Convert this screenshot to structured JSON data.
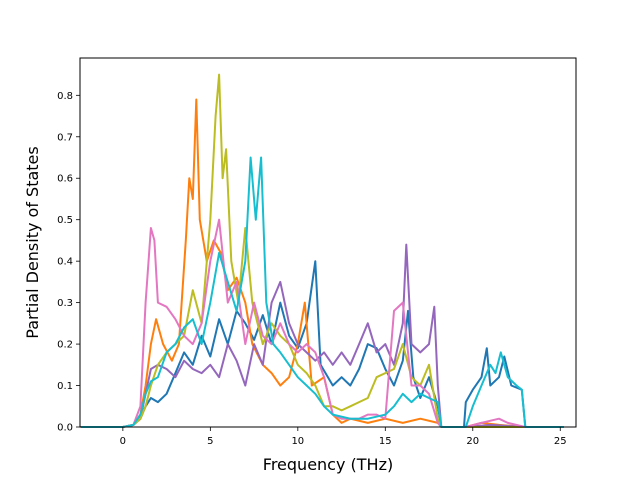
{
  "chart_data": {
    "type": "line",
    "xlabel": "Frequency (THz)",
    "ylabel": "Partial Density of States",
    "xlim": [
      -2.45,
      25.9
    ],
    "ylim": [
      0.0,
      0.89
    ],
    "xticks": [
      0,
      5,
      10,
      15,
      20,
      25
    ],
    "xtick_labels": [
      "0",
      "5",
      "10",
      "15",
      "20",
      "25"
    ],
    "yticks": [
      0.0,
      0.1,
      0.2,
      0.3,
      0.4,
      0.5,
      0.6,
      0.7,
      0.8
    ],
    "ytick_labels": [
      "0.0",
      "0.1",
      "0.2",
      "0.3",
      "0.4",
      "0.5",
      "0.6",
      "0.7",
      "0.8"
    ],
    "grid": false,
    "legend": "none",
    "series": [
      {
        "color": "#1f77b4",
        "points": [
          [
            -2.4,
            0
          ],
          [
            0,
            0
          ],
          [
            0.6,
            0.005
          ],
          [
            1,
            0.02
          ],
          [
            1.3,
            0.05
          ],
          [
            1.6,
            0.07
          ],
          [
            2,
            0.06
          ],
          [
            2.5,
            0.08
          ],
          [
            3,
            0.13
          ],
          [
            3.5,
            0.18
          ],
          [
            4,
            0.15
          ],
          [
            4.5,
            0.22
          ],
          [
            5,
            0.17
          ],
          [
            5.5,
            0.26
          ],
          [
            6,
            0.2
          ],
          [
            6.5,
            0.28
          ],
          [
            7,
            0.25
          ],
          [
            7.5,
            0.21
          ],
          [
            8,
            0.27
          ],
          [
            8.5,
            0.2
          ],
          [
            9,
            0.3
          ],
          [
            9.5,
            0.22
          ],
          [
            10,
            0.19
          ],
          [
            10.5,
            0.25
          ],
          [
            11,
            0.4
          ],
          [
            11.3,
            0.15
          ],
          [
            12,
            0.1
          ],
          [
            12.5,
            0.12
          ],
          [
            13,
            0.1
          ],
          [
            13.5,
            0.14
          ],
          [
            14,
            0.2
          ],
          [
            14.5,
            0.19
          ],
          [
            15,
            0.14
          ],
          [
            15.5,
            0.1
          ],
          [
            16,
            0.16
          ],
          [
            16.3,
            0.28
          ],
          [
            16.6,
            0.12
          ],
          [
            17,
            0.07
          ],
          [
            17.5,
            0.12
          ],
          [
            18,
            0.05
          ],
          [
            18.2,
            0
          ],
          [
            19.5,
            0
          ],
          [
            19.6,
            0.06
          ],
          [
            20,
            0.09
          ],
          [
            20.5,
            0.12
          ],
          [
            20.8,
            0.19
          ],
          [
            21,
            0.1
          ],
          [
            21.5,
            0.12
          ],
          [
            21.8,
            0.17
          ],
          [
            22.2,
            0.1
          ],
          [
            22.8,
            0.09
          ],
          [
            23,
            0
          ],
          [
            25.2,
            0
          ]
        ]
      },
      {
        "color": "#ff7f0e",
        "points": [
          [
            -2.4,
            0
          ],
          [
            0,
            0
          ],
          [
            0.6,
            0.005
          ],
          [
            1,
            0.03
          ],
          [
            1.3,
            0.1
          ],
          [
            1.6,
            0.2
          ],
          [
            1.9,
            0.26
          ],
          [
            2.3,
            0.2
          ],
          [
            2.8,
            0.16
          ],
          [
            3.2,
            0.2
          ],
          [
            3.6,
            0.45
          ],
          [
            3.8,
            0.6
          ],
          [
            4,
            0.55
          ],
          [
            4.2,
            0.79
          ],
          [
            4.4,
            0.5
          ],
          [
            4.8,
            0.4
          ],
          [
            5.2,
            0.45
          ],
          [
            5.6,
            0.42
          ],
          [
            6,
            0.33
          ],
          [
            6.5,
            0.36
          ],
          [
            7,
            0.3
          ],
          [
            7.4,
            0.2
          ],
          [
            8,
            0.15
          ],
          [
            8.5,
            0.13
          ],
          [
            9,
            0.1
          ],
          [
            9.5,
            0.12
          ],
          [
            10,
            0.2
          ],
          [
            10.4,
            0.3
          ],
          [
            10.8,
            0.1
          ],
          [
            11.5,
            0.12
          ],
          [
            12,
            0.03
          ],
          [
            12.5,
            0.01
          ],
          [
            13,
            0.02
          ],
          [
            14,
            0.01
          ],
          [
            15,
            0.02
          ],
          [
            16,
            0.01
          ],
          [
            17,
            0.02
          ],
          [
            18,
            0.01
          ],
          [
            18.2,
            0
          ],
          [
            19.6,
            0
          ],
          [
            20.5,
            0.01
          ],
          [
            21.5,
            0.005
          ],
          [
            23,
            0
          ],
          [
            25.2,
            0
          ]
        ]
      },
      {
        "color": "#9467bd",
        "points": [
          [
            -2.4,
            0
          ],
          [
            0,
            0
          ],
          [
            0.6,
            0.005
          ],
          [
            1,
            0.02
          ],
          [
            1.3,
            0.08
          ],
          [
            1.6,
            0.14
          ],
          [
            2,
            0.15
          ],
          [
            2.5,
            0.14
          ],
          [
            3,
            0.12
          ],
          [
            3.5,
            0.16
          ],
          [
            4,
            0.14
          ],
          [
            4.5,
            0.13
          ],
          [
            5,
            0.15
          ],
          [
            5.5,
            0.12
          ],
          [
            6,
            0.2
          ],
          [
            6.5,
            0.16
          ],
          [
            7,
            0.1
          ],
          [
            7.5,
            0.2
          ],
          [
            8,
            0.15
          ],
          [
            8.5,
            0.3
          ],
          [
            9,
            0.35
          ],
          [
            9.5,
            0.25
          ],
          [
            10,
            0.2
          ],
          [
            10.5,
            0.18
          ],
          [
            11,
            0.16
          ],
          [
            11.5,
            0.18
          ],
          [
            12,
            0.15
          ],
          [
            12.5,
            0.18
          ],
          [
            13,
            0.15
          ],
          [
            13.5,
            0.2
          ],
          [
            14,
            0.25
          ],
          [
            14.5,
            0.18
          ],
          [
            15,
            0.2
          ],
          [
            15.5,
            0.15
          ],
          [
            16,
            0.25
          ],
          [
            16.2,
            0.44
          ],
          [
            16.5,
            0.2
          ],
          [
            17,
            0.18
          ],
          [
            17.5,
            0.2
          ],
          [
            17.8,
            0.29
          ],
          [
            18,
            0.1
          ],
          [
            18.2,
            0
          ],
          [
            19.6,
            0
          ],
          [
            21,
            0.005
          ],
          [
            23,
            0
          ],
          [
            25.2,
            0
          ]
        ]
      },
      {
        "color": "#bcbd22",
        "points": [
          [
            -2.4,
            0
          ],
          [
            0,
            0
          ],
          [
            0.6,
            0.005
          ],
          [
            1,
            0.02
          ],
          [
            1.3,
            0.05
          ],
          [
            1.6,
            0.1
          ],
          [
            2,
            0.15
          ],
          [
            2.5,
            0.18
          ],
          [
            3,
            0.2
          ],
          [
            3.5,
            0.22
          ],
          [
            4,
            0.33
          ],
          [
            4.5,
            0.25
          ],
          [
            5,
            0.5
          ],
          [
            5.3,
            0.75
          ],
          [
            5.5,
            0.85
          ],
          [
            5.7,
            0.6
          ],
          [
            5.9,
            0.67
          ],
          [
            6.2,
            0.4
          ],
          [
            6.6,
            0.3
          ],
          [
            7,
            0.48
          ],
          [
            7.4,
            0.3
          ],
          [
            8,
            0.2
          ],
          [
            8.5,
            0.25
          ],
          [
            9,
            0.22
          ],
          [
            9.5,
            0.2
          ],
          [
            10,
            0.15
          ],
          [
            10.5,
            0.13
          ],
          [
            11,
            0.1
          ],
          [
            11.5,
            0.05
          ],
          [
            12,
            0.05
          ],
          [
            12.5,
            0.04
          ],
          [
            13,
            0.05
          ],
          [
            13.5,
            0.06
          ],
          [
            14,
            0.07
          ],
          [
            14.5,
            0.12
          ],
          [
            15,
            0.13
          ],
          [
            15.5,
            0.14
          ],
          [
            16,
            0.2
          ],
          [
            16.5,
            0.12
          ],
          [
            17,
            0.1
          ],
          [
            17.5,
            0.15
          ],
          [
            18,
            0.02
          ],
          [
            18.2,
            0
          ],
          [
            19.6,
            0
          ],
          [
            23,
            0
          ],
          [
            25.2,
            0
          ]
        ]
      },
      {
        "color": "#e377c2",
        "points": [
          [
            -2.4,
            0
          ],
          [
            0,
            0
          ],
          [
            0.6,
            0.005
          ],
          [
            1,
            0.05
          ],
          [
            1.3,
            0.3
          ],
          [
            1.6,
            0.48
          ],
          [
            1.8,
            0.45
          ],
          [
            2,
            0.3
          ],
          [
            2.5,
            0.29
          ],
          [
            3,
            0.26
          ],
          [
            3.5,
            0.22
          ],
          [
            4,
            0.2
          ],
          [
            4.5,
            0.25
          ],
          [
            5,
            0.4
          ],
          [
            5.5,
            0.5
          ],
          [
            6,
            0.3
          ],
          [
            6.5,
            0.35
          ],
          [
            7,
            0.2
          ],
          [
            7.5,
            0.3
          ],
          [
            8,
            0.22
          ],
          [
            8.5,
            0.2
          ],
          [
            9,
            0.25
          ],
          [
            9.5,
            0.2
          ],
          [
            10,
            0.18
          ],
          [
            10.5,
            0.2
          ],
          [
            11,
            0.18
          ],
          [
            11.5,
            0.12
          ],
          [
            12,
            0.03
          ],
          [
            12.5,
            0.02
          ],
          [
            13,
            0.02
          ],
          [
            13.5,
            0.02
          ],
          [
            14,
            0.03
          ],
          [
            14.5,
            0.03
          ],
          [
            15,
            0.02
          ],
          [
            15.5,
            0.28
          ],
          [
            16,
            0.3
          ],
          [
            16.5,
            0.1
          ],
          [
            17,
            0.1
          ],
          [
            17.5,
            0.08
          ],
          [
            18,
            0.01
          ],
          [
            18.2,
            0
          ],
          [
            19.6,
            0
          ],
          [
            20.5,
            0.01
          ],
          [
            21.5,
            0.02
          ],
          [
            22,
            0.01
          ],
          [
            23,
            0
          ],
          [
            25.2,
            0
          ]
        ]
      },
      {
        "color": "#17becf",
        "points": [
          [
            -2.4,
            0
          ],
          [
            0,
            0
          ],
          [
            0.6,
            0.005
          ],
          [
            1,
            0.03
          ],
          [
            1.3,
            0.08
          ],
          [
            1.6,
            0.11
          ],
          [
            2,
            0.12
          ],
          [
            2.5,
            0.18
          ],
          [
            3,
            0.2
          ],
          [
            3.5,
            0.24
          ],
          [
            4,
            0.26
          ],
          [
            4.5,
            0.2
          ],
          [
            5,
            0.3
          ],
          [
            5.5,
            0.42
          ],
          [
            6,
            0.35
          ],
          [
            6.5,
            0.28
          ],
          [
            7,
            0.4
          ],
          [
            7.3,
            0.65
          ],
          [
            7.6,
            0.5
          ],
          [
            7.9,
            0.65
          ],
          [
            8.2,
            0.3
          ],
          [
            8.6,
            0.2
          ],
          [
            9,
            0.18
          ],
          [
            9.5,
            0.15
          ],
          [
            10,
            0.12
          ],
          [
            10.5,
            0.1
          ],
          [
            11,
            0.08
          ],
          [
            11.5,
            0.05
          ],
          [
            12,
            0.03
          ],
          [
            13,
            0.02
          ],
          [
            14,
            0.02
          ],
          [
            15,
            0.03
          ],
          [
            15.5,
            0.05
          ],
          [
            16,
            0.08
          ],
          [
            16.5,
            0.06
          ],
          [
            17,
            0.08
          ],
          [
            17.5,
            0.07
          ],
          [
            18,
            0.06
          ],
          [
            18.2,
            0
          ],
          [
            19.6,
            0
          ],
          [
            20,
            0.05
          ],
          [
            20.5,
            0.1
          ],
          [
            21,
            0.15
          ],
          [
            21.3,
            0.13
          ],
          [
            21.6,
            0.18
          ],
          [
            22,
            0.12
          ],
          [
            22.5,
            0.1
          ],
          [
            22.8,
            0.09
          ],
          [
            23,
            0
          ],
          [
            25.2,
            0
          ]
        ]
      }
    ]
  }
}
